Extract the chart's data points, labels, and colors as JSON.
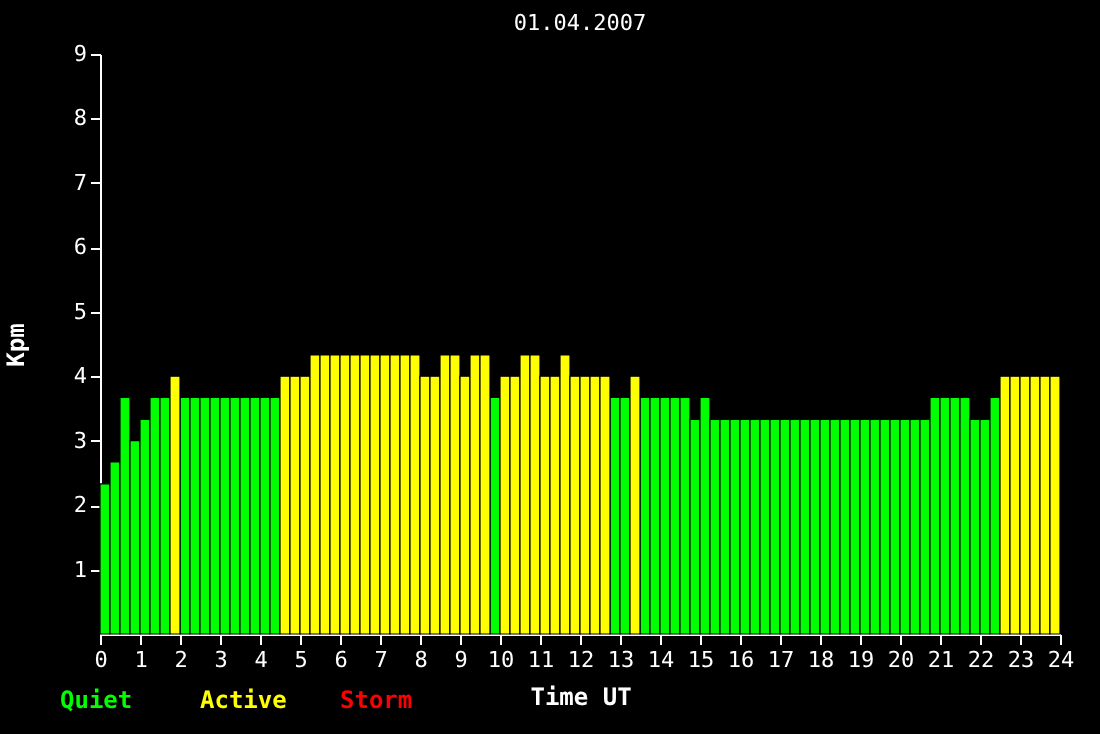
{
  "chart_data": {
    "type": "bar",
    "title": "01.04.2007",
    "xlabel": "Time UT",
    "ylabel": "Kpm",
    "x": [
      0,
      0.25,
      0.5,
      0.75,
      1,
      1.25,
      1.5,
      1.75,
      2,
      2.25,
      2.5,
      2.75,
      3,
      3.25,
      3.5,
      3.75,
      4,
      4.25,
      4.5,
      4.75,
      5,
      5.25,
      5.5,
      5.75,
      6,
      6.25,
      6.5,
      6.75,
      7,
      7.25,
      7.5,
      7.75,
      8,
      8.25,
      8.5,
      8.75,
      9,
      9.25,
      9.5,
      9.75,
      10,
      10.25,
      10.5,
      10.75,
      11,
      11.25,
      11.5,
      11.75,
      12,
      12.25,
      12.5,
      12.75,
      13,
      13.25,
      13.5,
      13.75,
      14,
      14.25,
      14.5,
      14.75,
      15,
      15.25,
      15.5,
      15.75,
      16,
      16.25,
      16.5,
      16.75,
      17,
      17.25,
      17.5,
      17.75,
      18,
      18.25,
      18.5,
      18.75,
      19,
      19.25,
      19.5,
      19.75,
      20,
      20.25,
      20.5,
      20.75,
      21,
      21.25,
      21.5,
      21.75,
      22,
      22.25,
      22.5,
      22.75,
      23,
      23.25,
      23.5,
      23.75
    ],
    "series": [
      {
        "name": "Quiet",
        "color": "#00ff00",
        "values": [
          2.33,
          2.67,
          3.67,
          3.0,
          3.33,
          3.67,
          3.67,
          null,
          3.67,
          3.67,
          3.67,
          3.67,
          3.67,
          3.67,
          3.67,
          3.67,
          3.67,
          3.67,
          null,
          null,
          null,
          null,
          null,
          null,
          null,
          null,
          null,
          null,
          null,
          null,
          null,
          null,
          null,
          null,
          null,
          null,
          null,
          null,
          null,
          3.67,
          null,
          null,
          null,
          null,
          null,
          null,
          null,
          null,
          null,
          null,
          null,
          3.67,
          3.67,
          null,
          3.67,
          3.67,
          3.67,
          3.67,
          3.67,
          3.33,
          3.67,
          3.33,
          3.33,
          3.33,
          3.33,
          3.33,
          3.33,
          3.33,
          3.33,
          3.33,
          3.33,
          3.33,
          3.33,
          3.33,
          3.33,
          3.33,
          3.33,
          3.33,
          3.33,
          3.33,
          3.33,
          3.33,
          3.33,
          3.67,
          3.67,
          3.67,
          3.67,
          3.33,
          3.33,
          3.67,
          null,
          null,
          null,
          null,
          null,
          null
        ]
      },
      {
        "name": "Active",
        "color": "#ffff00",
        "values": [
          null,
          null,
          null,
          null,
          null,
          null,
          null,
          4.0,
          null,
          null,
          null,
          null,
          null,
          null,
          null,
          null,
          null,
          null,
          4.0,
          4.0,
          4.0,
          4.33,
          4.33,
          4.33,
          4.33,
          4.33,
          4.33,
          4.33,
          4.33,
          4.33,
          4.33,
          4.33,
          4.0,
          4.0,
          4.33,
          4.33,
          4.0,
          4.33,
          4.33,
          null,
          4.0,
          4.0,
          4.33,
          4.33,
          4.0,
          4.0,
          4.33,
          4.0,
          4.0,
          4.0,
          4.0,
          null,
          null,
          4.0,
          null,
          null,
          null,
          null,
          null,
          null,
          null,
          null,
          null,
          null,
          null,
          null,
          null,
          null,
          null,
          null,
          null,
          null,
          null,
          null,
          null,
          null,
          null,
          null,
          null,
          null,
          null,
          null,
          null,
          null,
          null,
          null,
          null,
          null,
          null,
          null,
          4.0,
          4.0,
          4.0,
          4.0,
          4.0,
          4.0
        ]
      },
      {
        "name": "Storm",
        "color": "#ff0000",
        "values": [
          null,
          null,
          null,
          null,
          null,
          null,
          null,
          null,
          null,
          null,
          null,
          null,
          null,
          null,
          null,
          null,
          null,
          null,
          null,
          null,
          null,
          null,
          null,
          null,
          null,
          null,
          null,
          null,
          null,
          null,
          null,
          null,
          null,
          null,
          null,
          null,
          null,
          null,
          null,
          null,
          null,
          null,
          null,
          null,
          null,
          null,
          null,
          null,
          null,
          null,
          null,
          null,
          null,
          null,
          null,
          null,
          null,
          null,
          null,
          null,
          null,
          null,
          null,
          null,
          null,
          null,
          null,
          null,
          null,
          null,
          null,
          null,
          null,
          null,
          null,
          null,
          null,
          null,
          null,
          null,
          null,
          null,
          null,
          null,
          null,
          null,
          null,
          null,
          null,
          null,
          null,
          null,
          null,
          null,
          null,
          null
        ]
      }
    ],
    "xlim": [
      0,
      24
    ],
    "xticks": [
      0,
      1,
      2,
      3,
      4,
      5,
      6,
      7,
      8,
      9,
      10,
      11,
      12,
      13,
      14,
      15,
      16,
      17,
      18,
      19,
      20,
      21,
      22,
      23,
      24
    ],
    "ylim": [
      0,
      9
    ],
    "yticks": [
      1,
      2,
      3,
      4,
      5,
      6,
      7,
      8,
      9
    ],
    "grid": false
  }
}
